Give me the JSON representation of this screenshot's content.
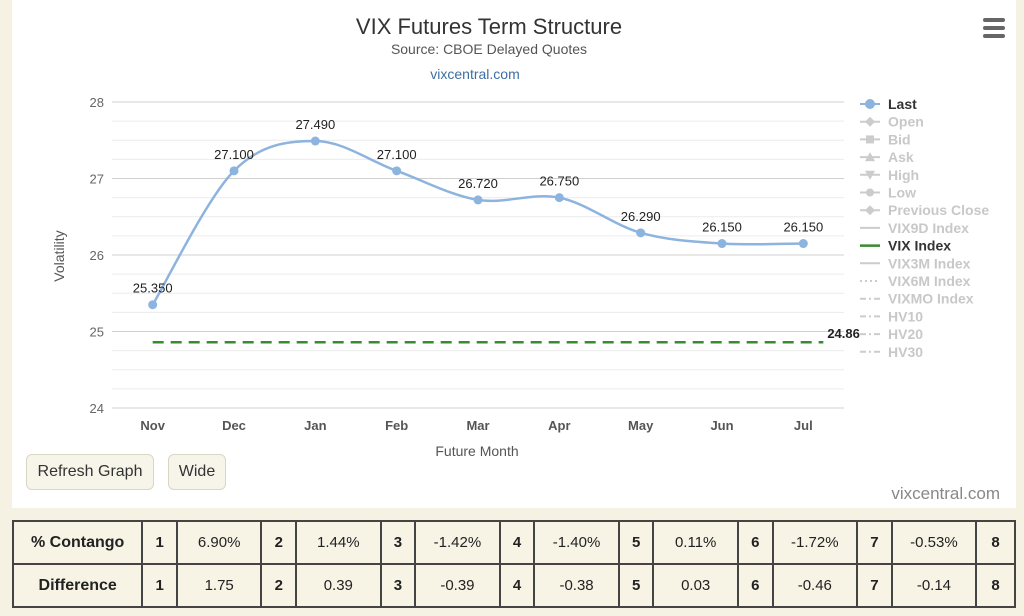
{
  "chart_data": {
    "type": "line",
    "title": "VIX Futures Term Structure",
    "subtitle": "Source: CBOE Delayed Quotes",
    "link": "vixcentral.com",
    "xlabel": "Future Month",
    "ylabel": "Volatility",
    "ylim": [
      24,
      28
    ],
    "yticks": [
      "24",
      "25",
      "26",
      "27",
      "28"
    ],
    "categories": [
      "Nov",
      "Dec",
      "Jan",
      "Feb",
      "Mar",
      "Apr",
      "May",
      "Jun",
      "Jul"
    ],
    "series": [
      {
        "name": "Last",
        "color": "#8db4de",
        "values": [
          25.35,
          27.1,
          27.49,
          27.1,
          26.72,
          26.75,
          26.29,
          26.15,
          26.15
        ],
        "labels": [
          "25.350",
          "27.100",
          "27.490",
          "27.100",
          "26.720",
          "26.750",
          "26.290",
          "26.150",
          "26.150"
        ]
      },
      {
        "name": "VIX Index",
        "color": "#3a8a2f",
        "value": 24.86,
        "label": "24.86",
        "style": "dashed"
      }
    ],
    "legend": {
      "position": "right",
      "items": [
        {
          "label": "Last",
          "active": true,
          "symbol": "circle",
          "color": "#8db4de"
        },
        {
          "label": "Open",
          "active": false,
          "symbol": "diamond"
        },
        {
          "label": "Bid",
          "active": false,
          "symbol": "square"
        },
        {
          "label": "Ask",
          "active": false,
          "symbol": "triangle"
        },
        {
          "label": "High",
          "active": false,
          "symbol": "triangle-down"
        },
        {
          "label": "Low",
          "active": false,
          "symbol": "circle"
        },
        {
          "label": "Previous Close",
          "active": false,
          "symbol": "diamond"
        },
        {
          "label": "VIX9D Index",
          "active": false,
          "symbol": "line"
        },
        {
          "label": "VIX Index",
          "active": true,
          "symbol": "line",
          "color": "#3a8a2f"
        },
        {
          "label": "VIX3M Index",
          "active": false,
          "symbol": "line"
        },
        {
          "label": "VIX6M Index",
          "active": false,
          "symbol": "dotted"
        },
        {
          "label": "VIXMO Index",
          "active": false,
          "symbol": "dashdot"
        },
        {
          "label": "HV10",
          "active": false,
          "symbol": "dashdot"
        },
        {
          "label": "HV20",
          "active": false,
          "symbol": "dashdot"
        },
        {
          "label": "HV30",
          "active": false,
          "symbol": "dashdot"
        }
      ]
    },
    "grid": true
  },
  "buttons": {
    "refresh": "Refresh Graph",
    "wide": "Wide"
  },
  "credit": "vixcentral.com",
  "table": {
    "rows": [
      {
        "header": "% Contango",
        "cells": [
          "1",
          "6.90%",
          "2",
          "1.44%",
          "3",
          "-1.42%",
          "4",
          "-1.40%",
          "5",
          "0.11%",
          "6",
          "-1.72%",
          "7",
          "-0.53%",
          "8"
        ]
      },
      {
        "header": "Difference",
        "cells": [
          "1",
          "1.75",
          "2",
          "0.39",
          "3",
          "-0.39",
          "4",
          "-0.38",
          "5",
          "0.03",
          "6",
          "-0.46",
          "7",
          "-0.14",
          "8"
        ]
      }
    ]
  }
}
